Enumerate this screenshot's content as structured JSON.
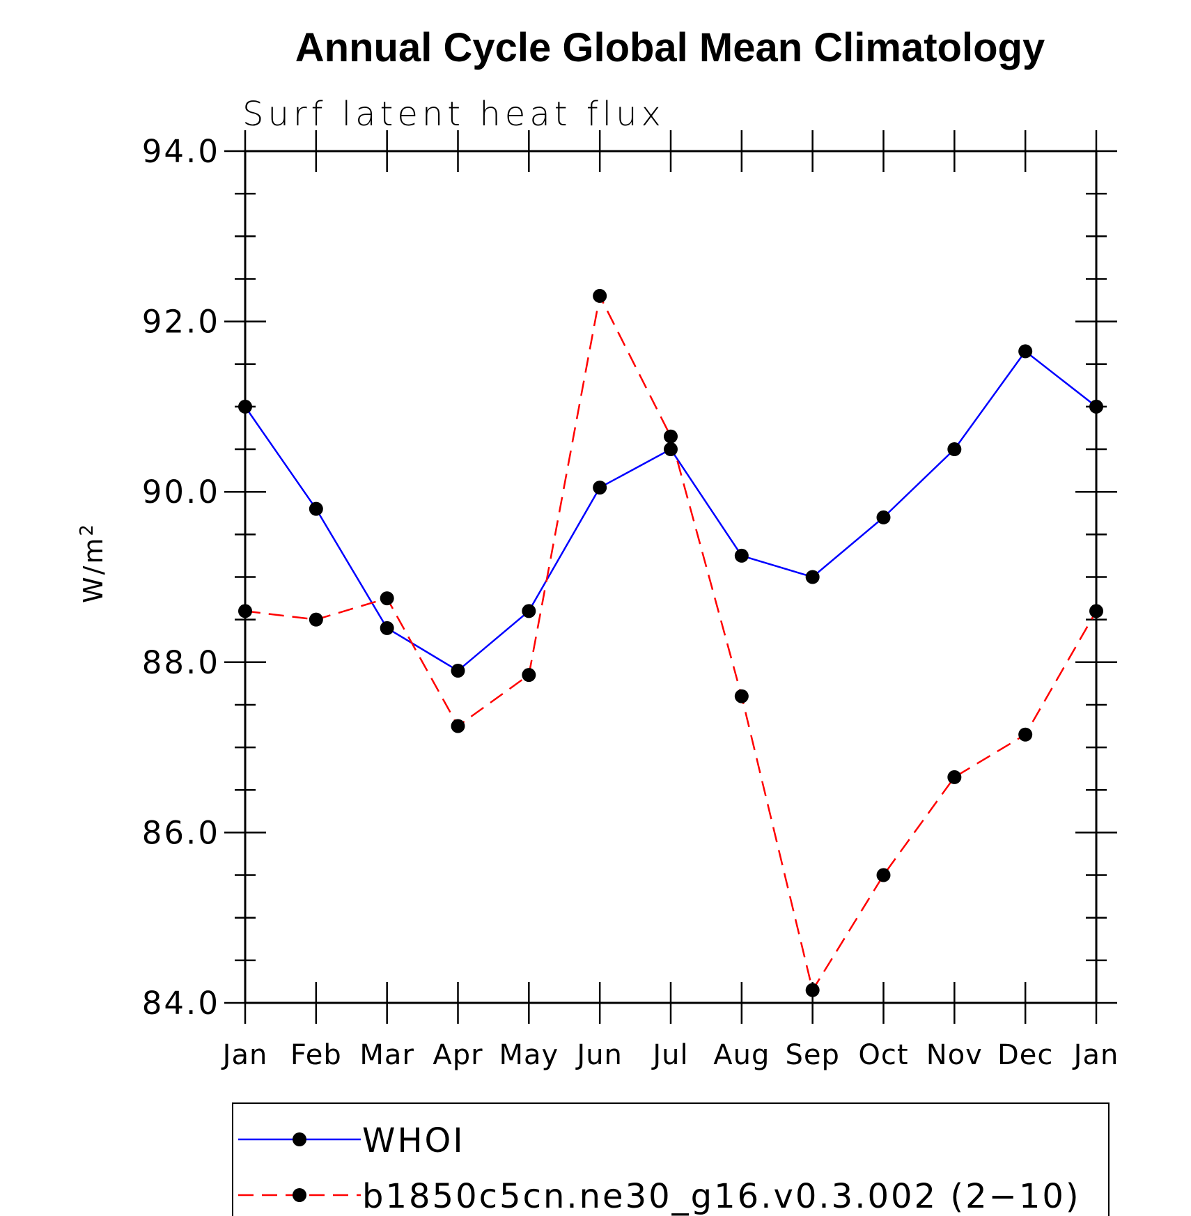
{
  "chart_data": {
    "type": "line",
    "title": "Annual Cycle Global Mean Climatology",
    "subtitle": "Surf latent heat flux",
    "ylabel": "W/m",
    "ylabel_superscript": "2",
    "categories": [
      "Jan",
      "Feb",
      "Mar",
      "Apr",
      "May",
      "Jun",
      "Jul",
      "Aug",
      "Sep",
      "Oct",
      "Nov",
      "Dec",
      "Jan"
    ],
    "ylim": [
      84.0,
      94.0
    ],
    "y_major_ticks": [
      84.0,
      86.0,
      88.0,
      90.0,
      92.0,
      94.0
    ],
    "y_tick_labels": [
      "84.0",
      "86.0",
      "88.0",
      "90.0",
      "92.0",
      "94.0"
    ],
    "y_minor_step": 0.5,
    "grid": false,
    "legend_position": "bottom",
    "series": [
      {
        "name": "WHOI",
        "color": "#0000ff",
        "line_style": "solid",
        "values": [
          91.0,
          89.8,
          88.4,
          87.9,
          88.6,
          90.05,
          90.5,
          89.25,
          89.0,
          89.7,
          90.5,
          91.65,
          91.0
        ]
      },
      {
        "name": "b1850c5cn.ne30_g16.v0.3.002 (2−10)",
        "color": "#ff0000",
        "line_style": "dashed",
        "values": [
          88.6,
          88.5,
          88.75,
          87.25,
          87.85,
          92.3,
          90.65,
          87.6,
          84.15,
          85.5,
          86.65,
          87.15,
          88.6
        ]
      }
    ]
  }
}
